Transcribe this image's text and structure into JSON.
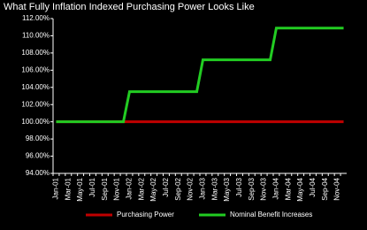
{
  "chart_data": {
    "type": "line",
    "title": "What Fully Inflation Indexed Purchasing Power Looks Like",
    "categories": [
      "Jan-01",
      null,
      "Mar-01",
      null,
      "May-01",
      null,
      "Jul-01",
      null,
      "Sep-01",
      null,
      "Nov-01",
      null,
      "Jan-02",
      null,
      "Mar-02",
      null,
      "May-02",
      null,
      "Jul-02",
      null,
      "Sep-02",
      null,
      "Nov-02",
      null,
      "Jan-03",
      null,
      "Mar-03",
      null,
      "May-03",
      null,
      "Jul-03",
      null,
      "Sep-03",
      null,
      "Nov-03",
      null,
      "Jan-04",
      null,
      "Mar-04",
      null,
      "May-04",
      null,
      "Jul-04",
      null,
      "Sep-04",
      null,
      "Nov-04",
      null
    ],
    "series": [
      {
        "name": "Purchasing Power",
        "color": "#c00000",
        "values": [
          100,
          100,
          100,
          100,
          100,
          100,
          100,
          100,
          100,
          100,
          100,
          100,
          100,
          100,
          100,
          100,
          100,
          100,
          100,
          100,
          100,
          100,
          100,
          100,
          100,
          100,
          100,
          100,
          100,
          100,
          100,
          100,
          100,
          100,
          100,
          100,
          100,
          100,
          100,
          100,
          100,
          100,
          100,
          100,
          100,
          100,
          100,
          100
        ]
      },
      {
        "name": "Nominal Benefit Increases",
        "color": "#22cc22",
        "values": [
          100,
          100,
          100,
          100,
          100,
          100,
          100,
          100,
          100,
          100,
          100,
          100,
          103.5,
          103.5,
          103.5,
          103.5,
          103.5,
          103.5,
          103.5,
          103.5,
          103.5,
          103.5,
          103.5,
          103.5,
          107.2,
          107.2,
          107.2,
          107.2,
          107.2,
          107.2,
          107.2,
          107.2,
          107.2,
          107.2,
          107.2,
          107.2,
          110.9,
          110.9,
          110.9,
          110.9,
          110.9,
          110.9,
          110.9,
          110.9,
          110.9,
          110.9,
          110.9,
          110.9
        ]
      }
    ],
    "ylim": [
      94,
      112
    ],
    "yticks": [
      {
        "value": 94,
        "label": "94.00%"
      },
      {
        "value": 96,
        "label": "96.00%"
      },
      {
        "value": 98,
        "label": "98.00%"
      },
      {
        "value": 100,
        "label": "100.00%"
      },
      {
        "value": 102,
        "label": "102.00%"
      },
      {
        "value": 104,
        "label": "104.00%"
      },
      {
        "value": 106,
        "label": "106.00%"
      },
      {
        "value": 108,
        "label": "108.00%"
      },
      {
        "value": 110,
        "label": "110.00%"
      },
      {
        "value": 112,
        "label": "112.00%"
      }
    ],
    "legend": "bottom"
  }
}
